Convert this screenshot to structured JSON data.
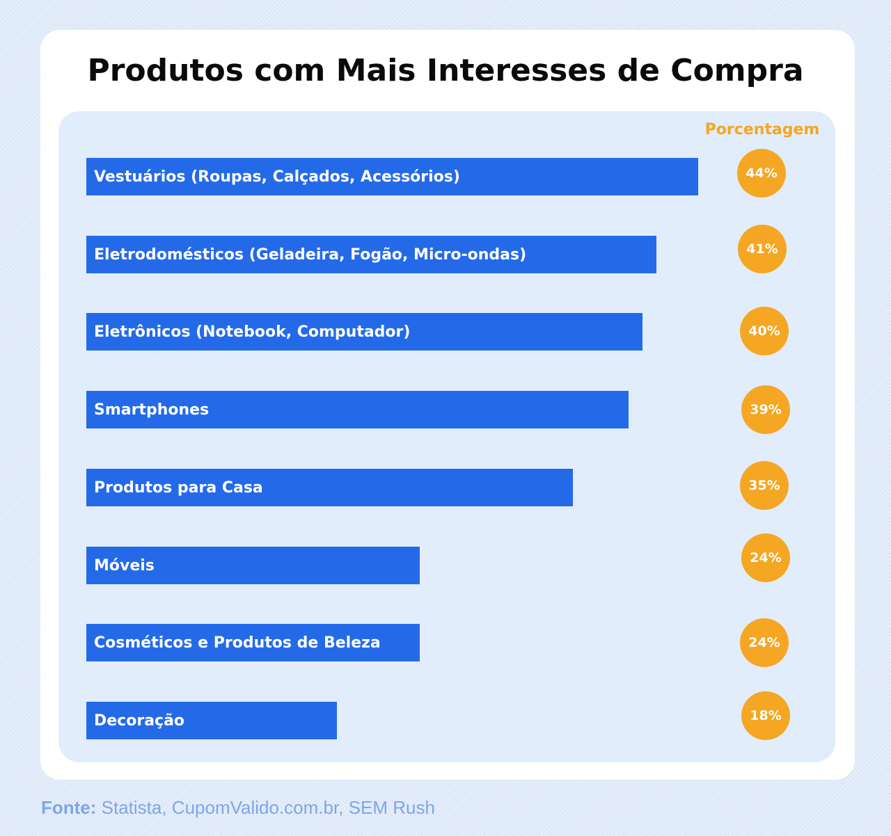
{
  "colors": {
    "background": "#dce8f7",
    "bar": "#246ae8",
    "badge": "#f5a623",
    "panel": "#e1edfb",
    "source": "#7ea6e6"
  },
  "footer": {
    "source_key": "Fonte:",
    "source_text": " Statista, CupomValido.com.br, SEM Rush"
  },
  "chart_data": {
    "type": "bar",
    "orientation": "horizontal",
    "title": "Produtos com Mais Interesses de Compra",
    "value_header": "Porcentagem",
    "unit": "%",
    "categories": [
      "Vestuários (Roupas, Calçados, Acessórios)",
      "Eletrodomésticos (Geladeira, Fogão, Micro-ondas)",
      "Eletrônicos (Notebook, Computador)",
      "Smartphones",
      "Produtos para Casa",
      "Móveis",
      "Cosméticos e Produtos de Beleza",
      "Decoração"
    ],
    "values": [
      44,
      41,
      40,
      39,
      35,
      24,
      24,
      18
    ],
    "value_labels": [
      "44%",
      "41%",
      "40%",
      "39%",
      "35%",
      "24%",
      "24%",
      "18%"
    ],
    "xlim": [
      0,
      44
    ],
    "grid": false,
    "legend": "none"
  }
}
